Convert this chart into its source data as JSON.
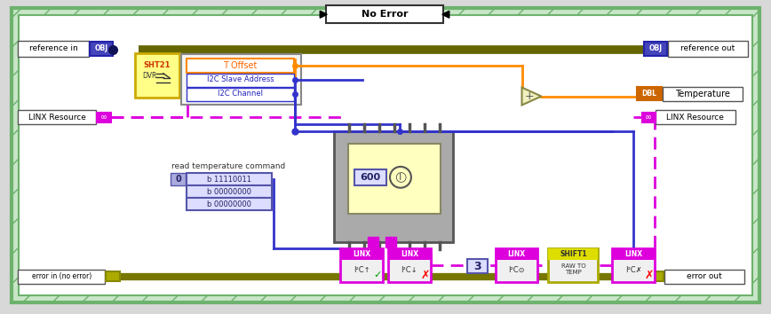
{
  "fig_width": 8.68,
  "fig_height": 3.54,
  "title": "No Error",
  "labels": {
    "reference_in": "reference in",
    "reference_out": "reference out",
    "linx_resource_in": "LINX Resource",
    "linx_resource_out": "LINX Resource",
    "error_in": "error in (no error)",
    "error_out": "error out",
    "temperature": "Temperature",
    "t_offset": "T Offset",
    "i2c_slave": "I2C Slave Address",
    "i2c_channel": "I2C Channel",
    "read_cmd": "read temperature command",
    "bit1": "b 11110011",
    "bit2": "b 00000000",
    "bit3": "b 00000000",
    "val600": "600",
    "val3": "3",
    "sht21": "SHT21",
    "dvr": "DVR",
    "raw_to_temp": "RAW TO\nTEMP",
    "shift1": "SHIFT1",
    "linx1": "LINX",
    "linx2": "LINX",
    "linx3": "LINX",
    "linx4": "LINX",
    "obj": "OBJ",
    "dbl": "DBL",
    "i2c": "I²C␣"
  },
  "colors": {
    "green_border": "#6db26d",
    "green_fill": "#c8e6c8",
    "blue_wire": "#3333cc",
    "pink_wire": "#ee00ee",
    "orange_wire": "#ff8c00",
    "obj_blue": "#2222aa",
    "obj_bg": "#4444bb",
    "dbl_orange": "#cc6600",
    "magenta": "#dd00dd",
    "olive_wire": "#777700",
    "cream": "#ffffc0",
    "light_blue": "#aaaaff",
    "blue_box": "#5555cc",
    "yellow_top": "#dddd00",
    "linx_top": "#ee00ee",
    "sht_yellow": "#ffff88",
    "sht_border": "#ccaa00",
    "ic_gray": "#aaaaaa",
    "ic_border": "#555555",
    "white": "#ffffff",
    "dark": "#333333"
  }
}
